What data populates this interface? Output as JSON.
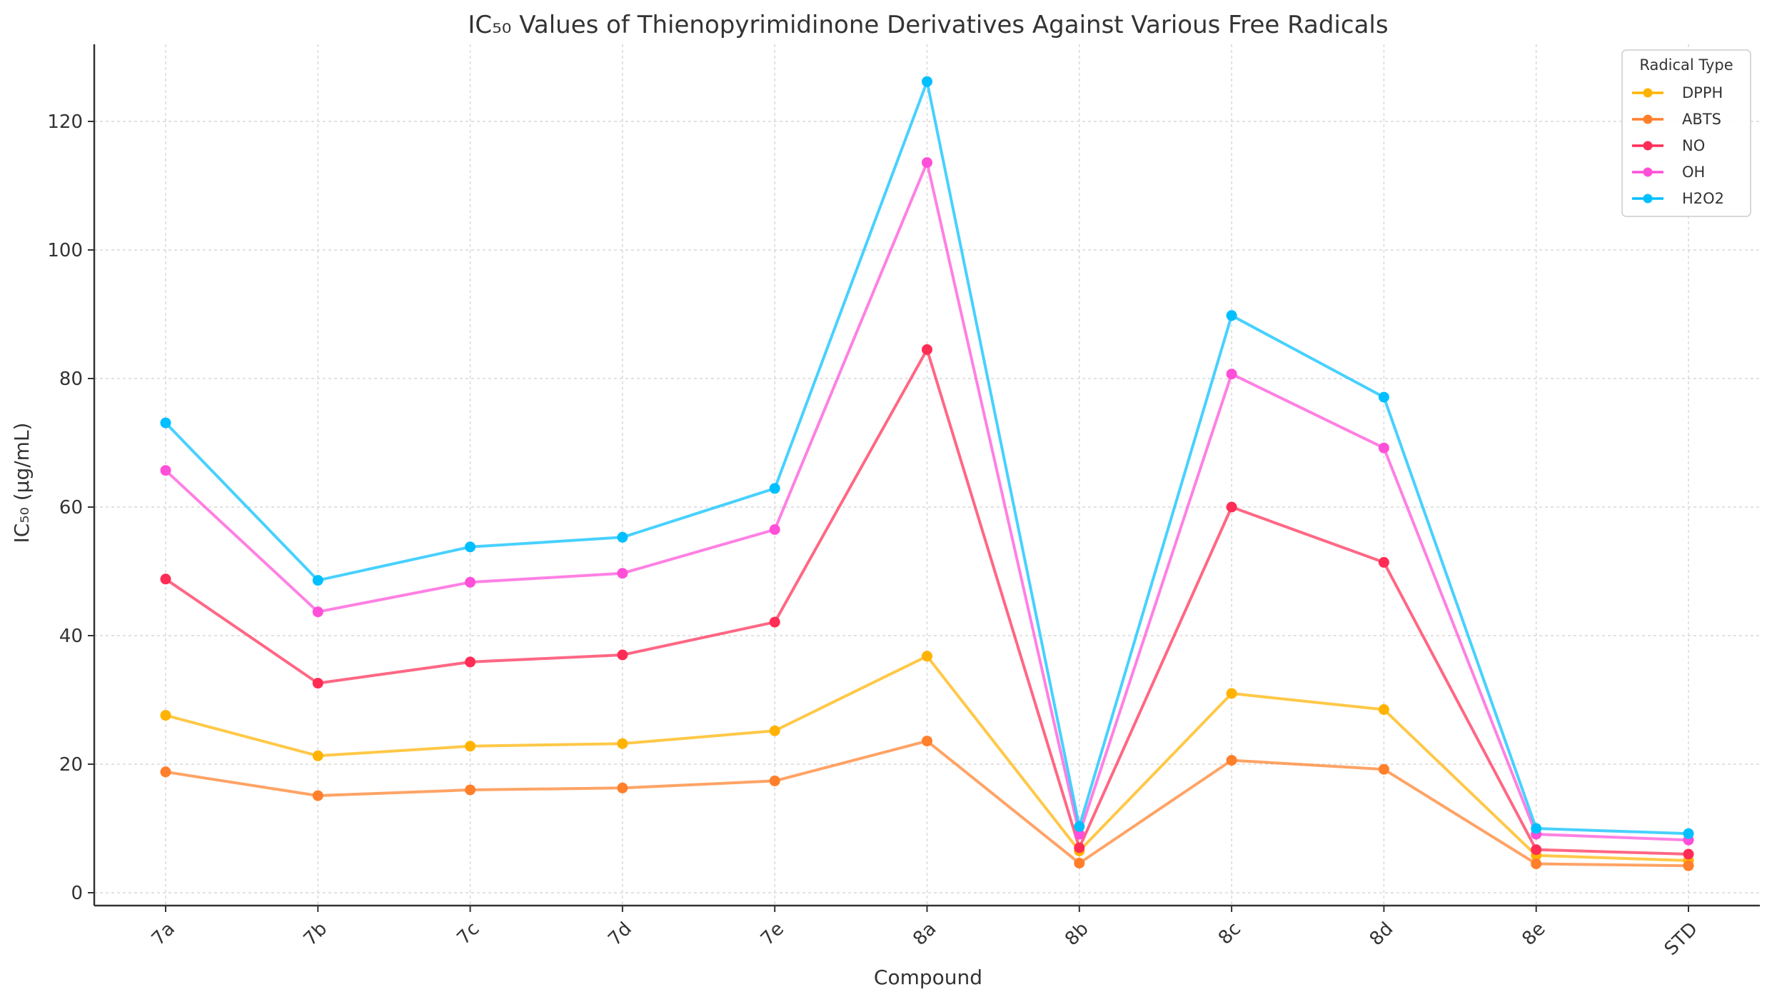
{
  "chart_data": {
    "type": "line",
    "title": "IC₅₀ Values of Thienopyrimidinone Derivatives Against Various Free Radicals",
    "xlabel": "Compound",
    "ylabel": "IC₅₀ (μg/mL)",
    "categories": [
      "7a",
      "7b",
      "7c",
      "7d",
      "7e",
      "8a",
      "8b",
      "8c",
      "8d",
      "8e",
      "STD"
    ],
    "ylim": [
      -2,
      132
    ],
    "yticks": [
      0,
      20,
      40,
      60,
      80,
      100,
      120
    ],
    "grid": true,
    "legend": {
      "title": "Radical Type",
      "placement": "top-right"
    },
    "series": [
      {
        "name": "DPPH",
        "color": "#FFB300",
        "values": [
          27.6,
          21.3,
          22.8,
          23.2,
          25.2,
          36.8,
          6.5,
          31.0,
          28.5,
          5.8,
          5.0
        ]
      },
      {
        "name": "ABTS",
        "color": "#FF7F2A",
        "values": [
          18.8,
          15.1,
          16.0,
          16.3,
          17.4,
          23.6,
          4.6,
          20.6,
          19.2,
          4.5,
          4.2
        ]
      },
      {
        "name": "NO",
        "color": "#FF2D55",
        "values": [
          48.8,
          32.6,
          35.9,
          37.0,
          42.1,
          84.5,
          7.0,
          60.0,
          51.4,
          6.7,
          6.0
        ]
      },
      {
        "name": "OH",
        "color": "#FF4FD8",
        "values": [
          65.7,
          43.7,
          48.3,
          49.7,
          56.5,
          113.6,
          9.1,
          80.7,
          69.2,
          9.1,
          8.2
        ]
      },
      {
        "name": "H2O2",
        "color": "#00BFFF",
        "values": [
          73.1,
          48.6,
          53.8,
          55.3,
          62.9,
          126.2,
          10.3,
          89.8,
          77.1,
          10.0,
          9.2
        ]
      }
    ]
  }
}
